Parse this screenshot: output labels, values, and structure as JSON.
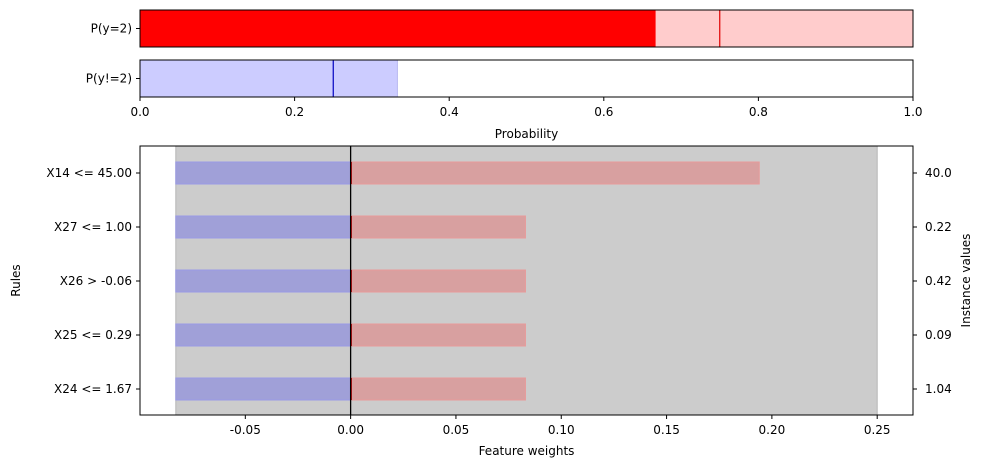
{
  "chart_data": [
    {
      "type": "bar",
      "orientation": "horizontal",
      "categories": [
        "P(y=2)",
        "P(y!=2)"
      ],
      "series": [
        {
          "values": [
            0.667,
            0.0
          ],
          "color": "#ff0000"
        },
        {
          "values": [
            1.0,
            0.333
          ],
          "color_pos": "#ffcccc",
          "color_neg": "#ccccff"
        }
      ],
      "markers": [
        {
          "category": "P(y=2)",
          "value": 0.75,
          "color": "#e00000"
        },
        {
          "category": "P(y!=2)",
          "value": 0.25,
          "color": "#0000c0"
        }
      ],
      "xlabel": "Probability",
      "xlim": [
        0,
        1.0
      ],
      "xticks": [
        "0.0",
        "0.2",
        "0.4",
        "0.6",
        "0.8",
        "1.0"
      ]
    },
    {
      "type": "bar",
      "orientation": "horizontal",
      "categories": [
        "X14 <= 45.00",
        "X27 <= 1.00",
        "X26 > -0.06",
        "X25 <= 0.29",
        "X24 <= 1.67"
      ],
      "instance_values": [
        "40.0",
        "0.22",
        "0.42",
        "0.09",
        "1.04"
      ],
      "series": [
        {
          "values": [
            0.194,
            0.083,
            0.083,
            0.083,
            0.083
          ],
          "color": "#d8a0a0"
        },
        {
          "values": [
            -0.083,
            -0.083,
            -0.083,
            -0.083,
            -0.083
          ],
          "color": "#a0a0d8"
        }
      ],
      "background_span": [
        -0.083,
        0.25
      ],
      "zero_line": 0.0,
      "xlabel": "Feature weights",
      "ylabel": "Rules",
      "y2label": "Instance values",
      "xlim": [
        -0.1,
        0.267
      ],
      "xticks": [
        "-0.05",
        "0.00",
        "0.05",
        "0.10",
        "0.15",
        "0.20",
        "0.25"
      ]
    }
  ]
}
